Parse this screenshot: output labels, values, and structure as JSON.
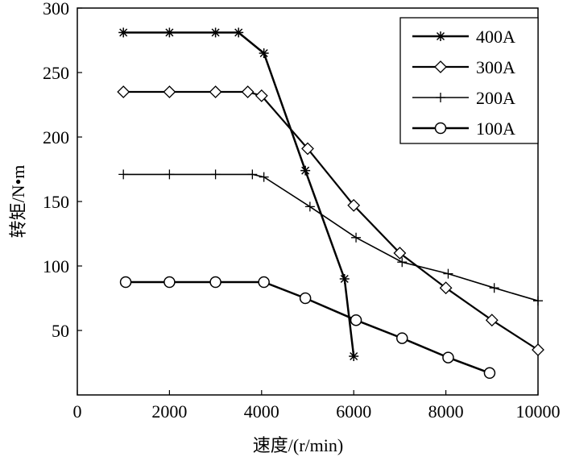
{
  "chart_data": {
    "type": "line",
    "title": "",
    "xlabel": "速度/(r/min)",
    "ylabel": "转矩/N•m",
    "xlim": [
      0,
      10000
    ],
    "ylim": [
      0,
      300
    ],
    "xticks": [
      0,
      2000,
      4000,
      6000,
      8000,
      10000
    ],
    "yticks": [
      50,
      100,
      150,
      200,
      250,
      300
    ],
    "y_zero_label": "0",
    "grid": false,
    "legend_position": "top-right",
    "series": [
      {
        "name": "400A",
        "marker": "asterisk",
        "x": [
          1000,
          2000,
          3000,
          3500,
          4050,
          4950,
          5800,
          6000
        ],
        "y": [
          281,
          281,
          281,
          281,
          265,
          174,
          90,
          30
        ]
      },
      {
        "name": "300A",
        "marker": "diamond",
        "x": [
          1000,
          2000,
          3000,
          3700,
          4000,
          5000,
          6000,
          7000,
          8000,
          9000,
          10000
        ],
        "y": [
          235,
          235,
          235,
          235,
          232,
          191,
          147,
          110,
          83,
          58,
          35
        ]
      },
      {
        "name": "200A",
        "marker": "plus",
        "x": [
          1000,
          2000,
          3000,
          3800,
          4050,
          5050,
          6050,
          7050,
          8050,
          9050,
          10000
        ],
        "y": [
          171,
          171,
          171,
          171,
          169,
          146,
          122,
          103,
          94,
          83,
          73
        ]
      },
      {
        "name": "100A",
        "marker": "circle",
        "x": [
          1050,
          2000,
          3000,
          4050,
          4950,
          6050,
          7050,
          8050,
          8950
        ],
        "y": [
          87.5,
          87.5,
          87.5,
          87.5,
          75,
          58,
          44,
          29,
          17
        ]
      }
    ]
  }
}
